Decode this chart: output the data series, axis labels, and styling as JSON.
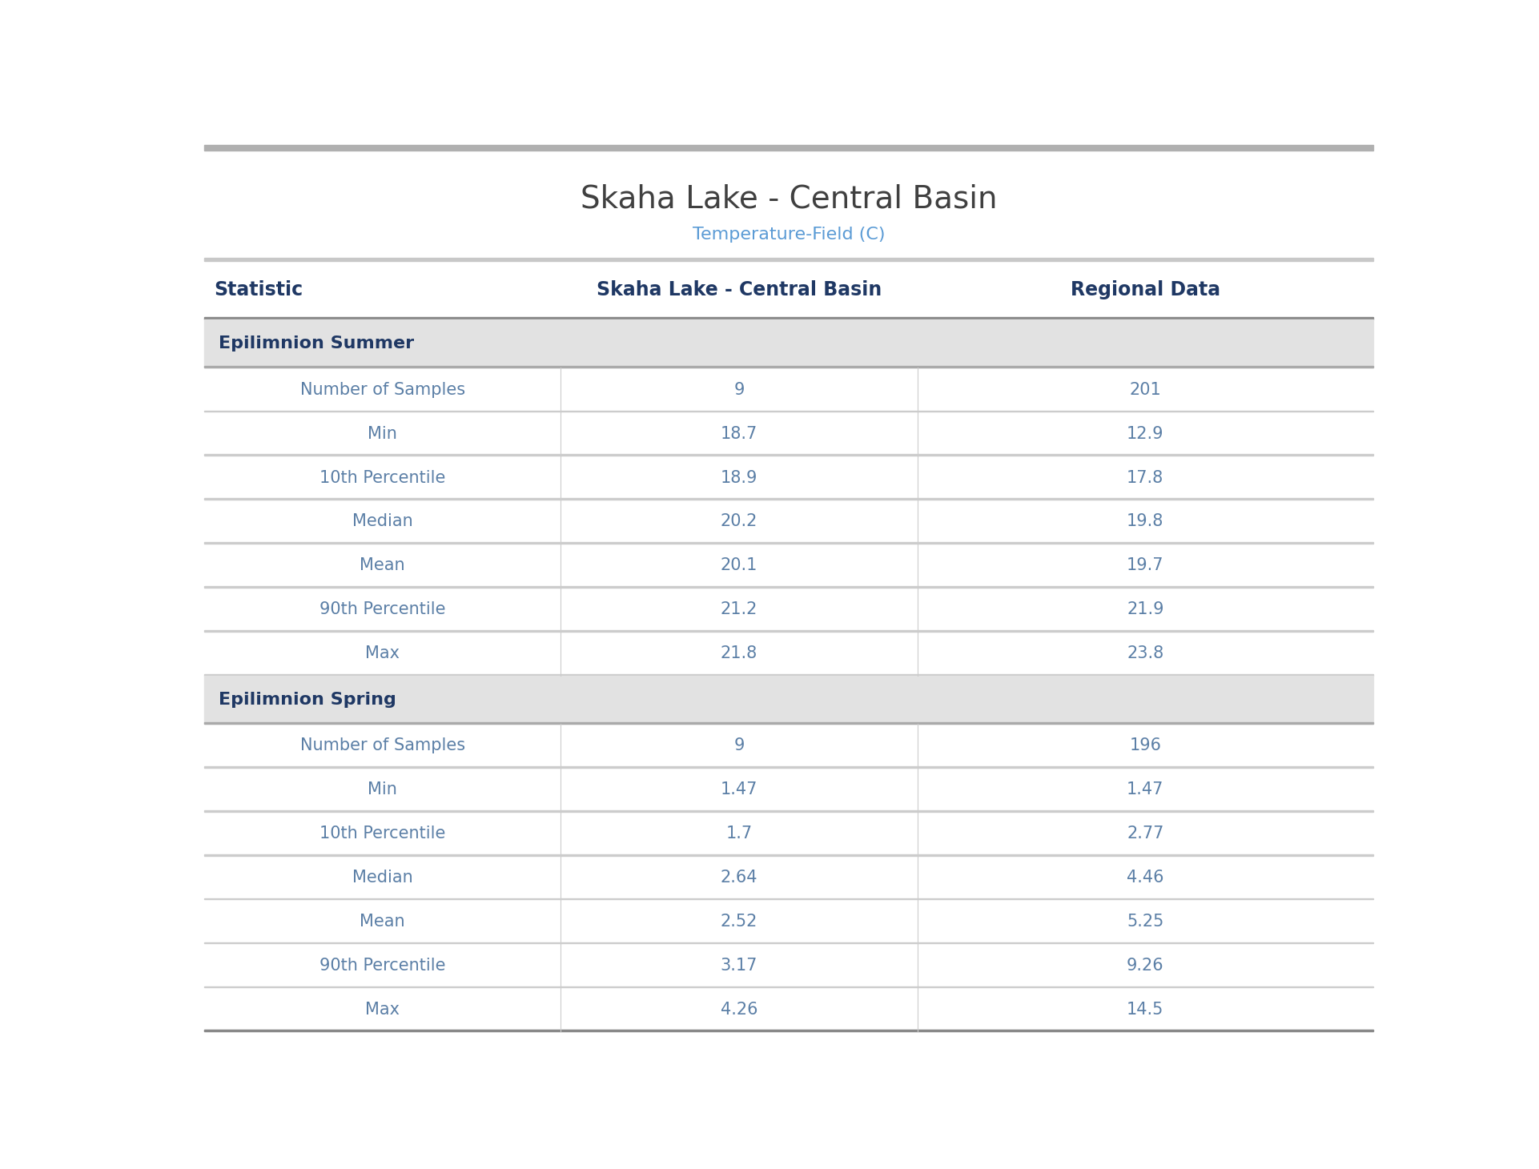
{
  "title": "Skaha Lake - Central Basin",
  "subtitle": "Temperature-Field (C)",
  "subtitle_color": "#5b9bd5",
  "title_color": "#404040",
  "header_col1": "Statistic",
  "header_col2": "Skaha Lake - Central Basin",
  "header_col3": "Regional Data",
  "header_text_color": "#1f3864",
  "section_bg_color": "#e2e2e2",
  "section_text_color": "#1f3864",
  "row_line_color": "#cccccc",
  "data_text_color": "#5b7fa6",
  "col2_text_color": "#5b7fa6",
  "col3_text_color": "#5b7fa6",
  "top_bar_color": "#b0b0b0",
  "header_line_color": "#888888",
  "sections": [
    {
      "section_name": "Epilimnion Summer",
      "rows": [
        {
          "statistic": "Number of Samples",
          "col2": "9",
          "col3": "201"
        },
        {
          "statistic": "Min",
          "col2": "18.7",
          "col3": "12.9"
        },
        {
          "statistic": "10th Percentile",
          "col2": "18.9",
          "col3": "17.8"
        },
        {
          "statistic": "Median",
          "col2": "20.2",
          "col3": "19.8"
        },
        {
          "statistic": "Mean",
          "col2": "20.1",
          "col3": "19.7"
        },
        {
          "statistic": "90th Percentile",
          "col2": "21.2",
          "col3": "21.9"
        },
        {
          "statistic": "Max",
          "col2": "21.8",
          "col3": "23.8"
        }
      ]
    },
    {
      "section_name": "Epilimnion Spring",
      "rows": [
        {
          "statistic": "Number of Samples",
          "col2": "9",
          "col3": "196"
        },
        {
          "statistic": "Min",
          "col2": "1.47",
          "col3": "1.47"
        },
        {
          "statistic": "10th Percentile",
          "col2": "1.7",
          "col3": "2.77"
        },
        {
          "statistic": "Median",
          "col2": "2.64",
          "col3": "4.46"
        },
        {
          "statistic": "Mean",
          "col2": "2.52",
          "col3": "5.25"
        },
        {
          "statistic": "90th Percentile",
          "col2": "3.17",
          "col3": "9.26"
        },
        {
          "statistic": "Max",
          "col2": "4.26",
          "col3": "14.5"
        }
      ]
    }
  ]
}
